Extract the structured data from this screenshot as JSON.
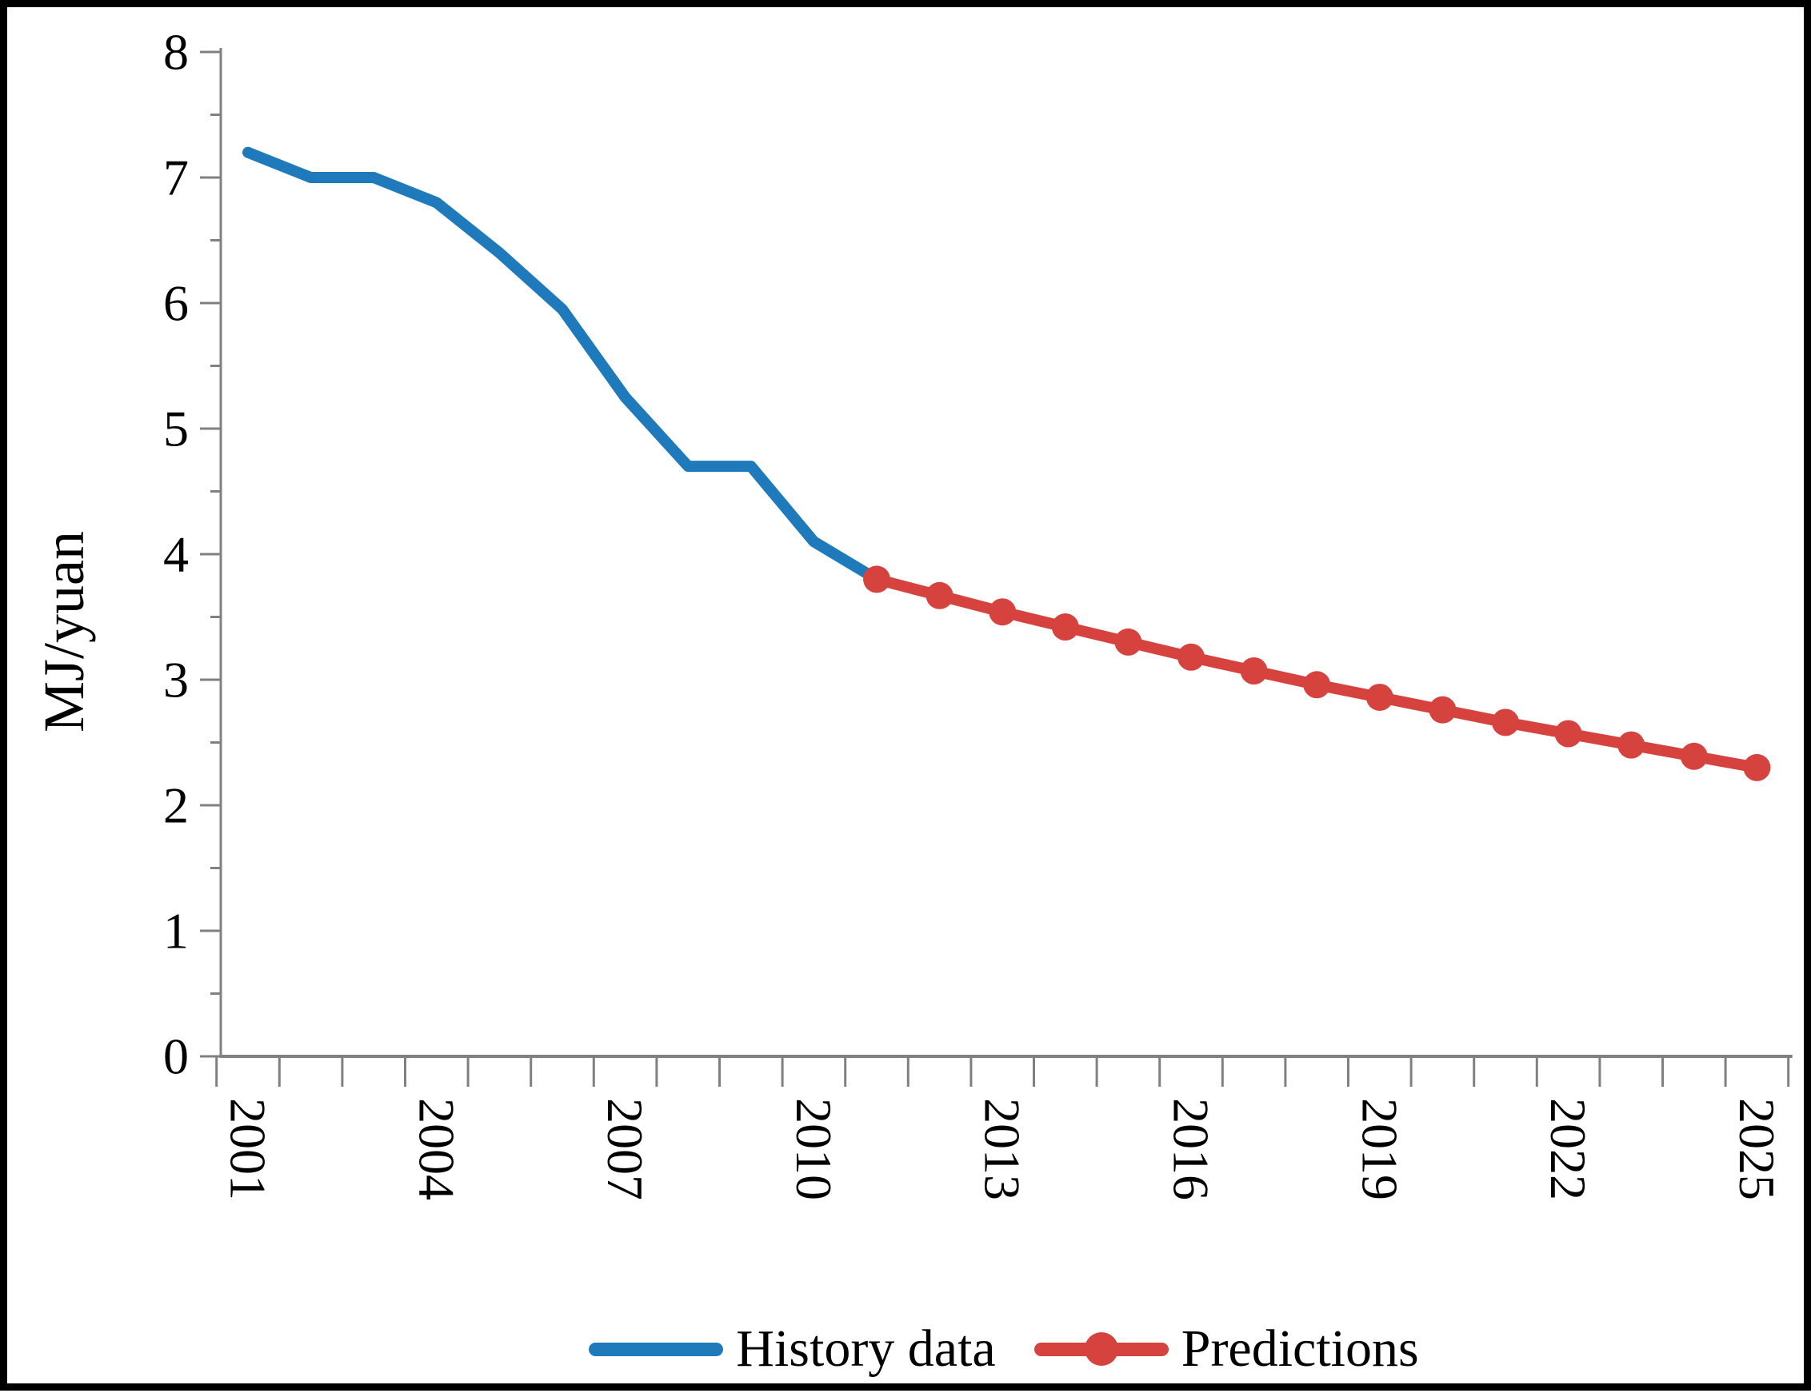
{
  "chart_data": {
    "type": "line",
    "title": "",
    "xlabel": "",
    "ylabel": "MJ/yuan",
    "ylim": [
      0,
      8
    ],
    "y_major_ticks": [
      0,
      1,
      2,
      3,
      4,
      5,
      6,
      7,
      8
    ],
    "y_minor_tick_step": 0.5,
    "x_years_range": [
      2001,
      2025
    ],
    "x_labeled_years": [
      2001,
      2004,
      2007,
      2010,
      2013,
      2016,
      2019,
      2022,
      2025
    ],
    "grid": false,
    "legend_position": "bottom-center",
    "axis_color": "#808080",
    "text_color": "#000000",
    "frame_color": "#000000",
    "series": [
      {
        "name": "History data",
        "color": "#1F7ABC",
        "marker": "none",
        "years": [
          2001,
          2002,
          2003,
          2004,
          2005,
          2006,
          2007,
          2008,
          2009,
          2010,
          2011
        ],
        "values": [
          7.2,
          7.0,
          7.0,
          6.8,
          6.4,
          5.95,
          5.25,
          4.7,
          4.7,
          4.1,
          3.8
        ]
      },
      {
        "name": "Predictions",
        "color": "#D6433E",
        "marker": "circle",
        "years": [
          2011,
          2012,
          2013,
          2014,
          2015,
          2016,
          2017,
          2018,
          2019,
          2020,
          2021,
          2022,
          2023,
          2024,
          2025
        ],
        "values": [
          3.8,
          3.67,
          3.54,
          3.42,
          3.3,
          3.18,
          3.07,
          2.96,
          2.86,
          2.76,
          2.66,
          2.57,
          2.48,
          2.39,
          2.3
        ]
      }
    ]
  }
}
